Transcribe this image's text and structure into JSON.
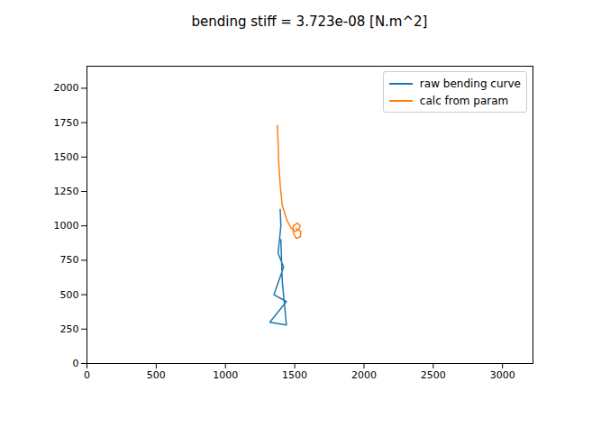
{
  "chart_data": {
    "type": "line",
    "title": "bending stiff = 3.723e-08 [N.m^2]",
    "series": [
      {
        "name": "raw bending curve",
        "color": "#1f77b4",
        "x": [
          1395,
          1400,
          1380,
          1420,
          1350,
          1440,
          1320,
          1440,
          1410,
          1400
        ],
        "values": [
          1120,
          1000,
          800,
          700,
          500,
          450,
          300,
          280,
          600,
          900
        ]
      },
      {
        "name": "calc from param",
        "color": "#ff7f0e",
        "x": [
          1375,
          1380,
          1385,
          1395,
          1410,
          1440,
          1470,
          1500,
          1530,
          1540,
          1520,
          1490,
          1490,
          1510,
          1540,
          1545,
          1510
        ],
        "values": [
          1730,
          1600,
          1450,
          1300,
          1150,
          1050,
          990,
          960,
          970,
          1000,
          1020,
          1000,
          950,
          910,
          920,
          960,
          980
        ]
      }
    ],
    "xlim": [
      0,
      3220
    ],
    "ylim": [
      0,
      2160
    ],
    "xticks": [
      0,
      500,
      1000,
      1500,
      2000,
      2500,
      3000
    ],
    "yticks": [
      0,
      250,
      500,
      750,
      1000,
      1250,
      1500,
      1750,
      2000
    ],
    "grid": false,
    "legend": "upper right"
  }
}
